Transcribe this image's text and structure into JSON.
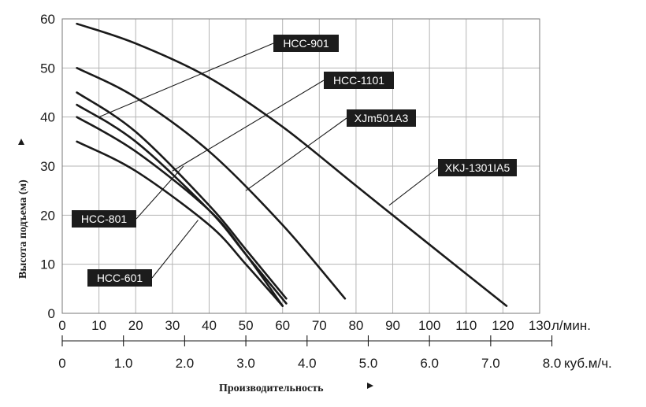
{
  "chart_data": {
    "type": "line",
    "ylabel": "Высота подъема (м)",
    "xlabel": "Производительность",
    "x_unit_primary": "л/мин.",
    "x_unit_secondary": "куб.м/ч.",
    "xlim": [
      0,
      130
    ],
    "ylim": [
      0,
      60
    ],
    "x_ticks": [
      "0",
      "10",
      "20",
      "30",
      "40",
      "50",
      "60",
      "70",
      "80",
      "90",
      "100",
      "110",
      "120",
      "130"
    ],
    "y_ticks": [
      "0",
      "10",
      "20",
      "30",
      "40",
      "50",
      "60"
    ],
    "x2_ticks": [
      "0",
      "1.0",
      "2.0",
      "3.0",
      "4.0",
      "5.0",
      "6.0",
      "7.0",
      "8.0"
    ],
    "grid": true,
    "series": [
      {
        "name": "HCC-901",
        "x": [
          4,
          20,
          40,
          60,
          80,
          100,
          121
        ],
        "y": [
          59,
          55,
          48,
          38,
          26,
          14,
          1.5
        ]
      },
      {
        "name": "HCC-1101",
        "x": [
          4,
          20,
          40,
          60,
          77
        ],
        "y": [
          50,
          44,
          33,
          18,
          3
        ]
      },
      {
        "name": "XJm501A3",
        "x": [
          4,
          20,
          40,
          50,
          61
        ],
        "y": [
          45,
          37,
          22,
          13,
          3
        ]
      },
      {
        "name": "HCC-801",
        "x": [
          4,
          20,
          40,
          50,
          61
        ],
        "y": [
          42.5,
          35,
          21,
          12,
          2
        ]
      },
      {
        "name": "HCC-601",
        "x": [
          4,
          20,
          40,
          50,
          60
        ],
        "y": [
          40,
          33,
          21,
          12,
          1.5
        ]
      },
      {
        "name": "",
        "x": [
          4,
          20,
          40,
          50,
          60
        ],
        "y": [
          35,
          29,
          18,
          10,
          1.5
        ]
      }
    ],
    "labels": [
      {
        "text": "HCC-901",
        "series": 0,
        "anchor_x": 10,
        "anchor_y": 40
      },
      {
        "text": "HCC-1101",
        "series": 1,
        "anchor_x": 30,
        "anchor_y": 29
      },
      {
        "text": "XJm501A3",
        "series": 2,
        "anchor_x": 50,
        "anchor_y": 25
      },
      {
        "text": "XKJ-1301IA5",
        "series": 0,
        "anchor_x": 89,
        "anchor_y": 22
      },
      {
        "text": "HCC-801",
        "series": 3,
        "anchor_x": 33,
        "anchor_y": 30
      },
      {
        "text": "HCC-601",
        "series": 4,
        "anchor_x": 37,
        "anchor_y": 19
      }
    ]
  }
}
